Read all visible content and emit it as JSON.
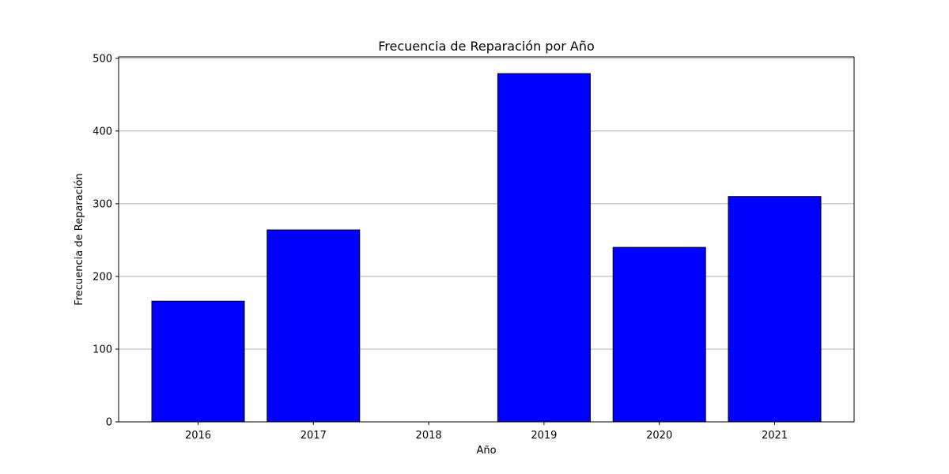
{
  "chart_data": {
    "type": "bar",
    "title": "Frecuencia de Reparación por Año",
    "xlabel": "Año",
    "ylabel": "Frecuencia de Reparación",
    "categories": [
      "2016",
      "2017",
      "2018",
      "2019",
      "2020",
      "2021"
    ],
    "values": [
      166,
      264,
      0,
      479,
      240,
      310
    ],
    "ylim": [
      0,
      502
    ],
    "yticks": [
      0,
      100,
      200,
      300,
      400,
      500
    ],
    "grid": "y-major",
    "bar_color": "#0000ff",
    "bar_edge_color": "#000000",
    "grid_color": "#b0b0b0"
  }
}
